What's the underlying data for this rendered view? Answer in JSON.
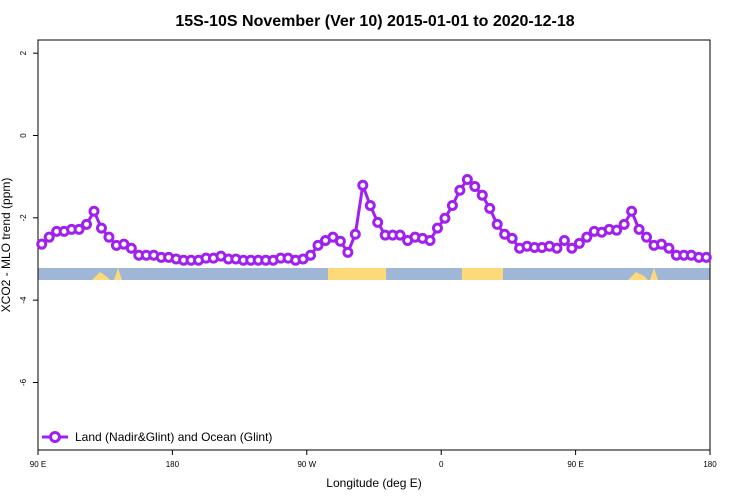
{
  "chart_data": {
    "type": "line",
    "title": "15S-10S November (Ver 10)   2015-01-01 to 2020-12-18",
    "x_label": "Longitude (deg E)",
    "y_label": "XCO2 - MLO trend (ppm)",
    "xlim": [
      90,
      540
    ],
    "ylim": [
      -7.64,
      2.32
    ],
    "xticks": [
      {
        "value": 90,
        "label": "90 E"
      },
      {
        "value": 180,
        "label": "180"
      },
      {
        "value": 270,
        "label": "90 W"
      },
      {
        "value": 360,
        "label": "0"
      },
      {
        "value": 450,
        "label": "90 E"
      },
      {
        "value": 540,
        "label": "180"
      }
    ],
    "yticks": [
      -6,
      -4,
      -2,
      0,
      2
    ],
    "legend": "lower left",
    "x": [
      92.5,
      97.5,
      102.5,
      107.5,
      112.5,
      117.5,
      122.5,
      127.5,
      132.5,
      137.5,
      142.5,
      147.5,
      152.5,
      157.5,
      162.5,
      167.5,
      172.5,
      177.5,
      182.5,
      187.5,
      192.5,
      197.5,
      202.5,
      207.5,
      212.5,
      217.5,
      222.5,
      227.5,
      232.5,
      237.5,
      242.5,
      247.5,
      252.5,
      257.5,
      262.5,
      267.5,
      272.5,
      277.5,
      282.5,
      287.5,
      292.5,
      297.5,
      302.5,
      307.5,
      312.5,
      317.5,
      322.5,
      327.5,
      332.5,
      337.5,
      342.5,
      347.5,
      352.5,
      357.5,
      362.5,
      367.5,
      372.5,
      377.5,
      382.5,
      387.5,
      392.5,
      397.5,
      402.5,
      407.5,
      412.5,
      417.5,
      422.5,
      427.5,
      432.5,
      437.5,
      442.5,
      447.5,
      452.5,
      457.5,
      462.5,
      467.5,
      472.5,
      477.5,
      482.5,
      487.5,
      492.5,
      497.5,
      502.5,
      507.5,
      512.5,
      517.5,
      522.5,
      527.5,
      532.5,
      537.5
    ],
    "series": [
      {
        "name": "Land (Nadir&Glint) and Ocean (Glint)",
        "color": "#a020f0",
        "values": [
          -2.64,
          -2.47,
          -2.33,
          -2.33,
          -2.28,
          -2.28,
          -2.16,
          -1.84,
          -2.25,
          -2.47,
          -2.67,
          -2.64,
          -2.74,
          -2.91,
          -2.91,
          -2.91,
          -2.96,
          -2.96,
          -3.0,
          -3.03,
          -3.03,
          -3.03,
          -2.98,
          -2.98,
          -2.93,
          -3.0,
          -3.0,
          -3.03,
          -3.03,
          -3.03,
          -3.03,
          -3.03,
          -2.98,
          -2.98,
          -3.03,
          -3.0,
          -2.91,
          -2.67,
          -2.55,
          -2.47,
          -2.57,
          -2.84,
          -2.4,
          -1.21,
          -1.7,
          -2.11,
          -2.42,
          -2.42,
          -2.42,
          -2.55,
          -2.47,
          -2.5,
          -2.55,
          -2.25,
          -2.01,
          -1.7,
          -1.33,
          -1.07,
          -1.24,
          -1.45,
          -1.77,
          -2.16,
          -2.4,
          -2.5,
          -2.74,
          -2.69,
          -2.72,
          -2.72,
          -2.69,
          -2.74,
          -2.55,
          -2.74,
          -2.62,
          -2.47,
          -2.33,
          -2.35,
          -2.28,
          -2.3,
          -2.16,
          -1.84,
          -2.28,
          -2.47,
          -2.67,
          -2.64,
          -2.74,
          -2.91,
          -2.91,
          -2.91,
          -2.96,
          -2.96
        ]
      }
    ]
  }
}
